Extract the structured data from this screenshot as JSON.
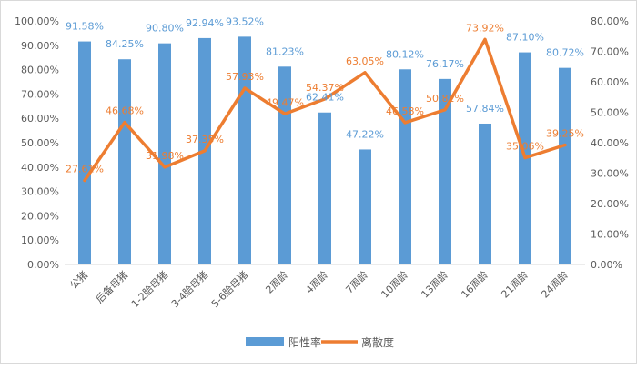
{
  "chart_data": {
    "type": "bar-line-combo",
    "categories": [
      "公猪",
      "后备母猪",
      "1-2胎母猪",
      "3-4胎母猪",
      "5-6胎母猪",
      "2周龄",
      "4周龄",
      "7周龄",
      "10周龄",
      "13周龄",
      "16周龄",
      "21周龄",
      "24周龄"
    ],
    "series": [
      {
        "name": "阳性率",
        "type": "bar",
        "axis": "left",
        "color": "#5b9bd5",
        "values": [
          91.58,
          84.25,
          90.8,
          92.94,
          93.52,
          81.23,
          62.41,
          47.22,
          80.12,
          76.17,
          57.84,
          87.1,
          80.72
        ],
        "labels": [
          "91.58%",
          "84.25%",
          "90.80%",
          "92.94%",
          "93.52%",
          "81.23%",
          "62.41%",
          "47.22%",
          "80.12%",
          "76.17%",
          "57.84%",
          "87.10%",
          "80.72%"
        ]
      },
      {
        "name": "离散度",
        "type": "line",
        "axis": "right",
        "color": "#ed7d31",
        "values": [
          27.61,
          46.68,
          31.98,
          37.35,
          57.93,
          49.47,
          54.37,
          63.05,
          46.58,
          50.82,
          73.92,
          35.06,
          39.25
        ],
        "labels": [
          "27.61%",
          "46.68%",
          "31.98%",
          "37.35%",
          "57.93%",
          "49.47%",
          "54.37%",
          "63.05%",
          "46.58%",
          "50.82%",
          "73.92%",
          "35.06%",
          "39.25%"
        ]
      }
    ],
    "left_axis": {
      "ylim": [
        0,
        100
      ],
      "ticks": [
        "0.00%",
        "10.00%",
        "20.00%",
        "30.00%",
        "40.00%",
        "50.00%",
        "60.00%",
        "70.00%",
        "80.00%",
        "90.00%",
        "100.00%"
      ]
    },
    "right_axis": {
      "ylim": [
        0,
        80
      ],
      "ticks": [
        "0.00%",
        "10.00%",
        "20.00%",
        "30.00%",
        "40.00%",
        "50.00%",
        "60.00%",
        "70.00%",
        "80.00%"
      ]
    },
    "grid": false,
    "legend_position": "bottom"
  }
}
